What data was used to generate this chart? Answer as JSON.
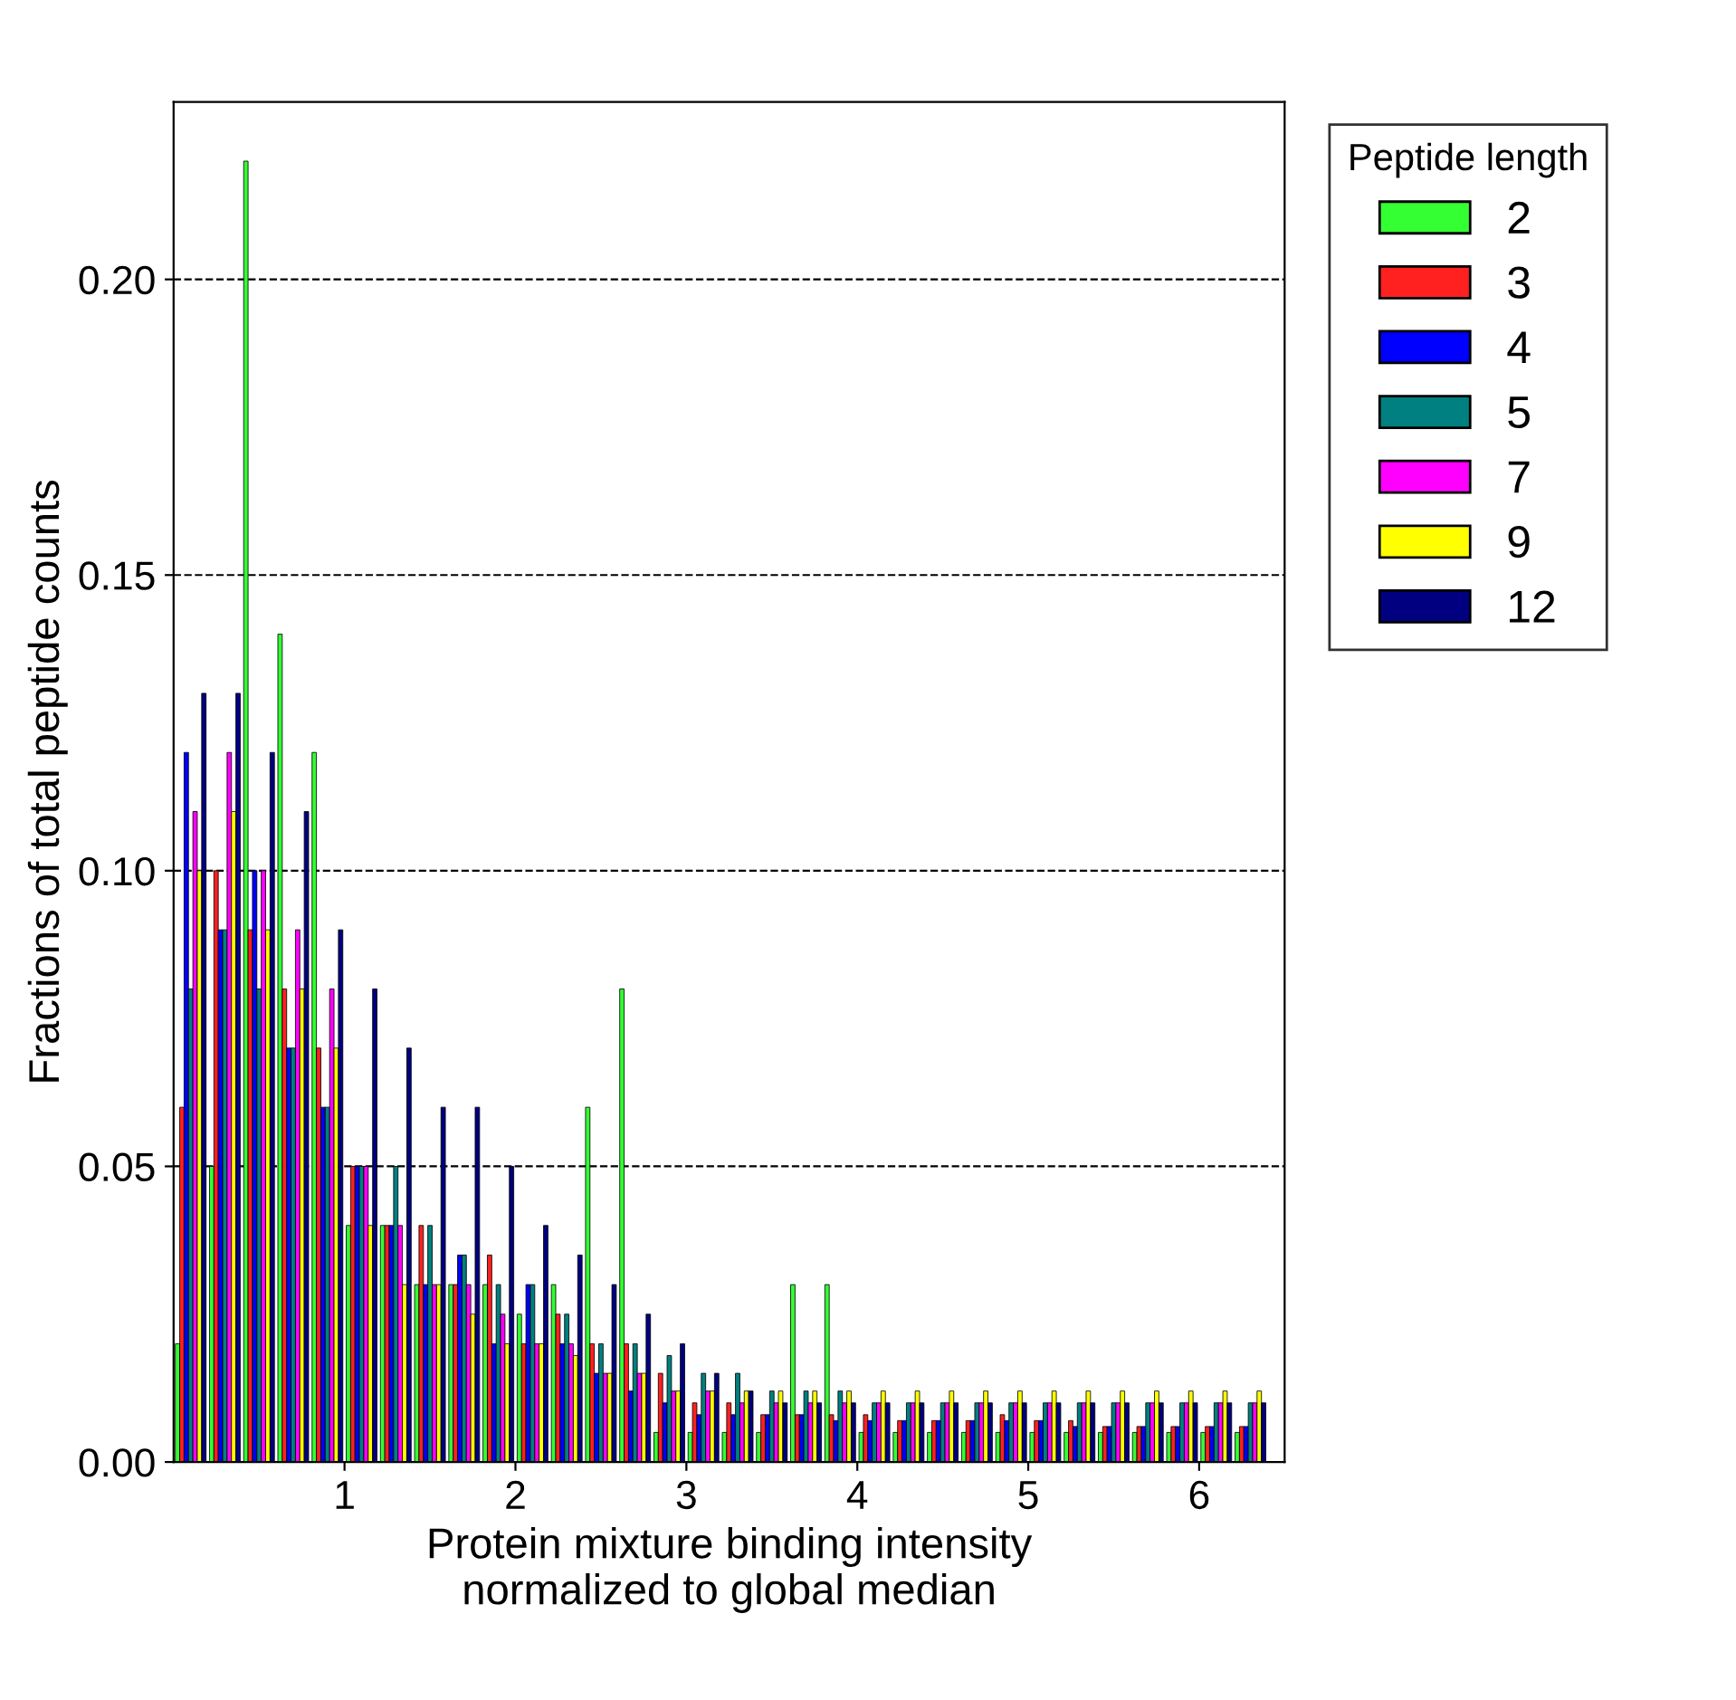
{
  "chart_data": {
    "type": "bar",
    "xlabel": "Protein mixture binding intensity\nnormalized to global median",
    "ylabel": "Fractions of total peptide counts",
    "legend_title": "Peptide length",
    "x": [
      0.1,
      0.3,
      0.5,
      0.7,
      0.9,
      1.1,
      1.3,
      1.5,
      1.7,
      1.9,
      2.1,
      2.3,
      2.5,
      2.7,
      2.9,
      3.1,
      3.3,
      3.5,
      3.7,
      3.9,
      4.1,
      4.3,
      4.5,
      4.7,
      4.9,
      5.1,
      5.3,
      5.5,
      5.7,
      5.9,
      6.1,
      6.3
    ],
    "xlim": [
      0,
      6.5
    ],
    "xticks": [
      1,
      2,
      3,
      4,
      5,
      6
    ],
    "ylim": [
      0,
      0.23
    ],
    "yticks": [
      {
        "value": 0,
        "label": "0.00"
      },
      {
        "value": 0.05,
        "label": "0.05"
      },
      {
        "value": 0.1,
        "label": "0.10"
      },
      {
        "value": 0.15,
        "label": "0.15"
      },
      {
        "value": 0.2,
        "label": "0.20"
      }
    ],
    "grid": "y",
    "legend": "top right",
    "series": [
      {
        "name": "2",
        "color": "#33ff33",
        "values": [
          0.02,
          0.05,
          0.22,
          0.14,
          0.12,
          0.04,
          0.04,
          0.03,
          0.03,
          0.03,
          0.025,
          0.03,
          0.06,
          0.08,
          0.005,
          0.005,
          0.005,
          0.005,
          0.03,
          0.03,
          0.005,
          0.005,
          0.005,
          0.005,
          0.005,
          0.005,
          0.005,
          0.005,
          0.005,
          0.005,
          0.005,
          0.005
        ]
      },
      {
        "name": "3",
        "color": "#ff2020",
        "values": [
          0.06,
          0.1,
          0.09,
          0.08,
          0.07,
          0.05,
          0.04,
          0.04,
          0.03,
          0.035,
          0.02,
          0.025,
          0.02,
          0.02,
          0.015,
          0.01,
          0.01,
          0.008,
          0.008,
          0.008,
          0.008,
          0.007,
          0.007,
          0.007,
          0.008,
          0.007,
          0.007,
          0.006,
          0.006,
          0.006,
          0.006,
          0.006
        ]
      },
      {
        "name": "4",
        "color": "#0000ff",
        "values": [
          0.12,
          0.09,
          0.1,
          0.07,
          0.06,
          0.05,
          0.04,
          0.03,
          0.035,
          0.02,
          0.03,
          0.02,
          0.015,
          0.012,
          0.01,
          0.008,
          0.008,
          0.008,
          0.008,
          0.007,
          0.007,
          0.007,
          0.007,
          0.007,
          0.007,
          0.007,
          0.006,
          0.006,
          0.006,
          0.006,
          0.006,
          0.006
        ]
      },
      {
        "name": "5",
        "color": "#008080",
        "values": [
          0.08,
          0.09,
          0.08,
          0.07,
          0.06,
          0.05,
          0.05,
          0.04,
          0.035,
          0.03,
          0.03,
          0.025,
          0.02,
          0.02,
          0.018,
          0.015,
          0.015,
          0.012,
          0.012,
          0.012,
          0.01,
          0.01,
          0.01,
          0.01,
          0.01,
          0.01,
          0.01,
          0.01,
          0.01,
          0.01,
          0.01,
          0.01
        ]
      },
      {
        "name": "7",
        "color": "#ff00ff",
        "values": [
          0.11,
          0.12,
          0.1,
          0.09,
          0.08,
          0.05,
          0.04,
          0.03,
          0.03,
          0.025,
          0.02,
          0.02,
          0.015,
          0.015,
          0.012,
          0.012,
          0.01,
          0.01,
          0.01,
          0.01,
          0.01,
          0.01,
          0.01,
          0.01,
          0.01,
          0.01,
          0.01,
          0.01,
          0.01,
          0.01,
          0.01,
          0.01
        ]
      },
      {
        "name": "9",
        "color": "#ffff00",
        "values": [
          0.1,
          0.11,
          0.09,
          0.08,
          0.07,
          0.04,
          0.03,
          0.03,
          0.025,
          0.02,
          0.02,
          0.018,
          0.015,
          0.015,
          0.012,
          0.012,
          0.012,
          0.012,
          0.012,
          0.012,
          0.012,
          0.012,
          0.012,
          0.012,
          0.012,
          0.012,
          0.012,
          0.012,
          0.012,
          0.012,
          0.012,
          0.012
        ]
      },
      {
        "name": "12",
        "color": "#000080",
        "values": [
          0.13,
          0.13,
          0.12,
          0.11,
          0.09,
          0.08,
          0.07,
          0.06,
          0.06,
          0.05,
          0.04,
          0.035,
          0.03,
          0.025,
          0.02,
          0.015,
          0.012,
          0.01,
          0.01,
          0.01,
          0.01,
          0.01,
          0.01,
          0.01,
          0.01,
          0.01,
          0.01,
          0.01,
          0.01,
          0.01,
          0.01,
          0.01
        ]
      }
    ]
  }
}
